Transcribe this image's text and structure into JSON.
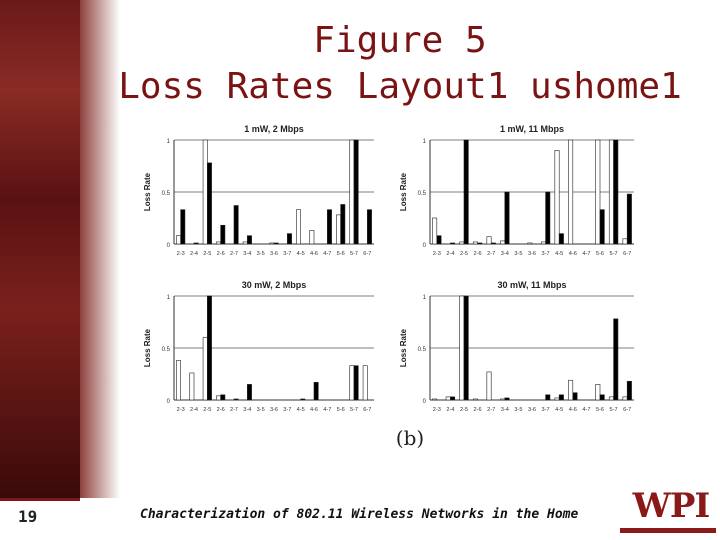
{
  "title_line1": "Figure 5",
  "title_line2": "Loss Rates Layout1 ushome1",
  "caption": "(b)",
  "footer": {
    "page_number": "19",
    "text": "Characterization of 802.11 Wireless Networks in the Home",
    "logo_text": "WPI"
  },
  "colors": {
    "title": "#7a1414",
    "brand": "#8a1a1a"
  },
  "chart_data": [
    {
      "type": "bar",
      "title": "1 mW, 2 Mbps",
      "ylabel": "Loss Rate",
      "ylim": [
        0,
        1
      ],
      "yticks": [
        "0",
        "0.5",
        "1"
      ],
      "categories": [
        "2-3",
        "2-4",
        "2-5",
        "2-6",
        "2-7",
        "3-4",
        "3-5",
        "3-6",
        "3-7",
        "4-5",
        "4-6",
        "4-7",
        "5-6",
        "5-7",
        "6-7"
      ],
      "series": [
        {
          "fill": "white",
          "values": [
            0.08,
            0.0,
            1.0,
            0.02,
            0.0,
            0.02,
            0.0,
            0.01,
            0.0,
            0.33,
            0.13,
            0.0,
            0.28,
            1.0,
            0.0
          ]
        },
        {
          "fill": "black",
          "values": [
            0.33,
            0.01,
            0.78,
            0.18,
            0.37,
            0.08,
            0.0,
            0.01,
            0.1,
            0.0,
            0.0,
            0.33,
            0.38,
            1.0,
            0.33
          ]
        }
      ],
      "grid": "horizontal at 0.5 and 1"
    },
    {
      "type": "bar",
      "title": "1 mW, 11 Mbps",
      "ylabel": "Loss Rate",
      "ylim": [
        0,
        1
      ],
      "yticks": [
        "0",
        "0.5",
        "1"
      ],
      "categories": [
        "2-3",
        "2-4",
        "2-5",
        "2-6",
        "2-7",
        "3-4",
        "3-5",
        "3-6",
        "3-7",
        "4-5",
        "4-6",
        "4-7",
        "5-6",
        "5-7",
        "6-7"
      ],
      "series": [
        {
          "fill": "white",
          "values": [
            0.25,
            0.0,
            0.02,
            0.02,
            0.07,
            0.03,
            0.0,
            0.01,
            0.02,
            0.9,
            1.0,
            0.0,
            1.0,
            1.0,
            0.05
          ]
        },
        {
          "fill": "black",
          "values": [
            0.08,
            0.01,
            1.0,
            0.01,
            0.01,
            0.5,
            0.0,
            0.0,
            0.5,
            0.1,
            0.0,
            0.0,
            0.33,
            1.0,
            0.48
          ]
        }
      ],
      "grid": "horizontal at 0.5 and 1"
    },
    {
      "type": "bar",
      "title": "30 mW, 2 Mbps",
      "ylabel": "Loss Rate",
      "ylim": [
        0,
        1
      ],
      "yticks": [
        "0",
        "0.5",
        "1"
      ],
      "categories": [
        "2-3",
        "2-4",
        "2-5",
        "2-6",
        "2-7",
        "3-4",
        "3-5",
        "3-6",
        "3-7",
        "4-5",
        "4-6",
        "4-7",
        "5-6",
        "5-7",
        "6-7"
      ],
      "series": [
        {
          "fill": "white",
          "values": [
            0.38,
            0.26,
            0.6,
            0.04,
            0.0,
            0.0,
            0.0,
            0.0,
            0.0,
            0.0,
            0.0,
            0.0,
            0.0,
            0.33,
            0.33
          ]
        },
        {
          "fill": "black",
          "values": [
            0.0,
            0.0,
            1.0,
            0.05,
            0.01,
            0.15,
            0.0,
            0.0,
            0.0,
            0.01,
            0.17,
            0.0,
            0.0,
            0.33,
            0.0
          ]
        }
      ],
      "grid": "horizontal at 0.5 and 1"
    },
    {
      "type": "bar",
      "title": "30 mW, 11 Mbps",
      "ylabel": "Loss Rate",
      "ylim": [
        0,
        1
      ],
      "yticks": [
        "0",
        "0.5",
        "1"
      ],
      "categories": [
        "2-3",
        "2-4",
        "2-5",
        "2-6",
        "2-7",
        "3-4",
        "3-5",
        "3-6",
        "3-7",
        "4-5",
        "4-6",
        "4-7",
        "5-6",
        "5-7",
        "6-7"
      ],
      "series": [
        {
          "fill": "white",
          "values": [
            0.01,
            0.03,
            1.0,
            0.01,
            0.27,
            0.01,
            0.0,
            0.0,
            0.0,
            0.02,
            0.19,
            0.0,
            0.15,
            0.03,
            0.03
          ]
        },
        {
          "fill": "black",
          "values": [
            0.0,
            0.03,
            1.0,
            0.0,
            0.0,
            0.02,
            0.0,
            0.0,
            0.05,
            0.05,
            0.07,
            0.0,
            0.05,
            0.78,
            0.18
          ]
        }
      ],
      "grid": "horizontal at 0.5 and 1"
    }
  ]
}
